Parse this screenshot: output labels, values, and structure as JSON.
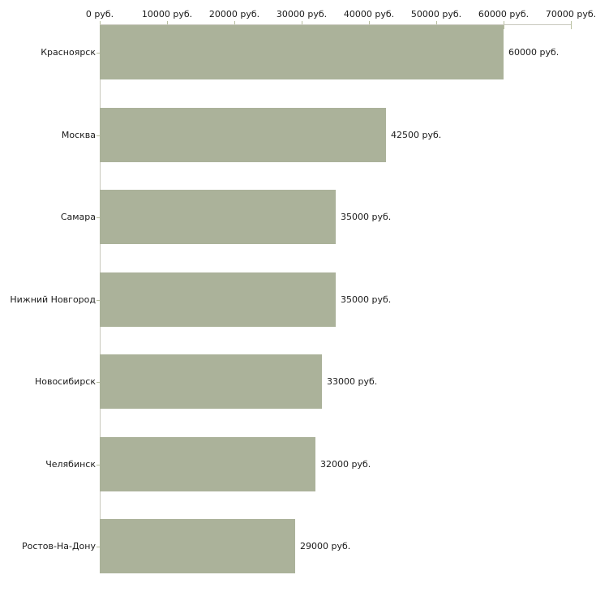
{
  "chart_data": {
    "type": "bar",
    "orientation": "horizontal",
    "title": "",
    "xlabel": "",
    "ylabel": "",
    "unit": "руб.",
    "categories": [
      "Красноярск",
      "Москва",
      "Самара",
      "Нижний Новгород",
      "Новосибирск",
      "Челябинск",
      "Ростов-На-Дону"
    ],
    "values": [
      60000,
      42500,
      35000,
      35000,
      33000,
      32000,
      29000
    ],
    "value_labels": [
      "60000 руб.",
      "42500 руб.",
      "35000 руб.",
      "35000 руб.",
      "33000 руб.",
      "32000 руб.",
      "29000 руб."
    ],
    "x_ticks": {
      "values": [
        0,
        10000,
        20000,
        30000,
        40000,
        50000,
        60000,
        70000
      ],
      "labels": [
        "0 руб.",
        "10000 руб.",
        "20000 руб.",
        "30000 руб.",
        "40000 руб.",
        "50000 руб.",
        "60000 руб.",
        "70000 руб."
      ]
    },
    "xlim": [
      0,
      70000
    ],
    "grid": false,
    "legend": false,
    "axis_position": "top",
    "colors": {
      "bar": "#abb29a",
      "axis_line": "#c8c8bd",
      "tick": "#b8bfa0",
      "text": "#1a1a1a",
      "background": "#ffffff"
    }
  }
}
